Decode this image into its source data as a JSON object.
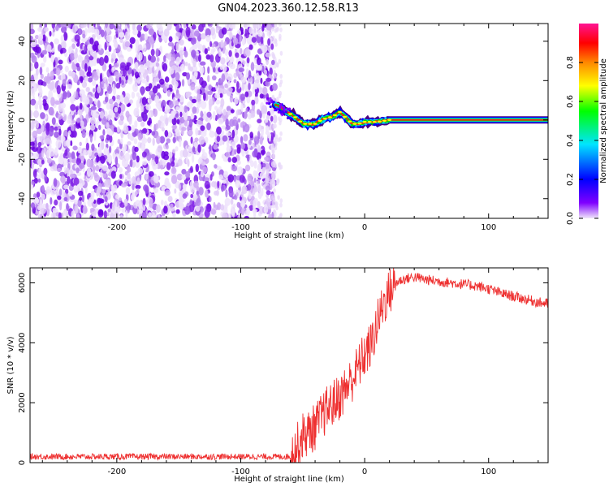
{
  "title": "GN04.2023.360.12.58.R13",
  "chart_data": [
    {
      "type": "heatmap",
      "xlabel": "Height of straight line (km)",
      "ylabel": "Frequency (Hz)",
      "xlim": [
        -270,
        148
      ],
      "ylim": [
        -50,
        49
      ],
      "xticks": [
        -200,
        -100,
        0,
        100
      ],
      "yticks": [
        -40,
        -20,
        0,
        20,
        40
      ],
      "noise_region_x": [
        -270,
        -72
      ],
      "signal_band": {
        "x": [
          -72,
          -65,
          -60,
          -55,
          -50,
          -45,
          -40,
          -35,
          -30,
          -25,
          -20,
          -15,
          -10,
          -5,
          0,
          5,
          10,
          20,
          40,
          60,
          80,
          90,
          100,
          148
        ],
        "freq": [
          8,
          5,
          3,
          1,
          -2,
          -2,
          -2,
          0,
          1,
          2,
          4,
          1,
          -2,
          -2,
          -1,
          -1,
          -1,
          0,
          0,
          0,
          0,
          0,
          0,
          0
        ]
      },
      "colorbar": {
        "label": "Normalized spectral amplitude",
        "ticks": [
          "0.0",
          "0.2",
          "0.4",
          "0.6",
          "0.8"
        ],
        "range": [
          0,
          1
        ],
        "colors": [
          "#f0e6fa",
          "#7f00ff",
          "#0000ff",
          "#00e5ff",
          "#00ff00",
          "#ffff00",
          "#ff8800",
          "#ff0000",
          "#ff1493"
        ]
      },
      "grid": false
    },
    {
      "type": "line",
      "xlabel": "Height of straight line (km)",
      "ylabel": "SNR (10 * v/v)",
      "xlim": [
        -270,
        148
      ],
      "ylim": [
        0,
        6500
      ],
      "xticks": [
        -200,
        -100,
        0,
        100
      ],
      "yticks": [
        0,
        2000,
        4000,
        6000
      ],
      "line_color": "#ee3030",
      "series": [
        {
          "x": [
            -270,
            -200,
            -100,
            -60,
            -55,
            -50,
            -45,
            -40,
            -35,
            -30,
            -25,
            -20,
            -15,
            -10,
            -5,
            0,
            5,
            10,
            15,
            20,
            25,
            30,
            35,
            40,
            50,
            60,
            70,
            80,
            90,
            100,
            110,
            120,
            130,
            140,
            148
          ],
          "y": [
            200,
            200,
            200,
            200,
            500,
            900,
            1000,
            1200,
            1500,
            1800,
            2000,
            2200,
            2500,
            2800,
            3200,
            3600,
            3900,
            4600,
            5300,
            5700,
            6000,
            6100,
            6150,
            6200,
            6100,
            6050,
            6000,
            5950,
            5900,
            5800,
            5650,
            5550,
            5450,
            5350,
            5300
          ]
        }
      ],
      "grid": false
    }
  ]
}
